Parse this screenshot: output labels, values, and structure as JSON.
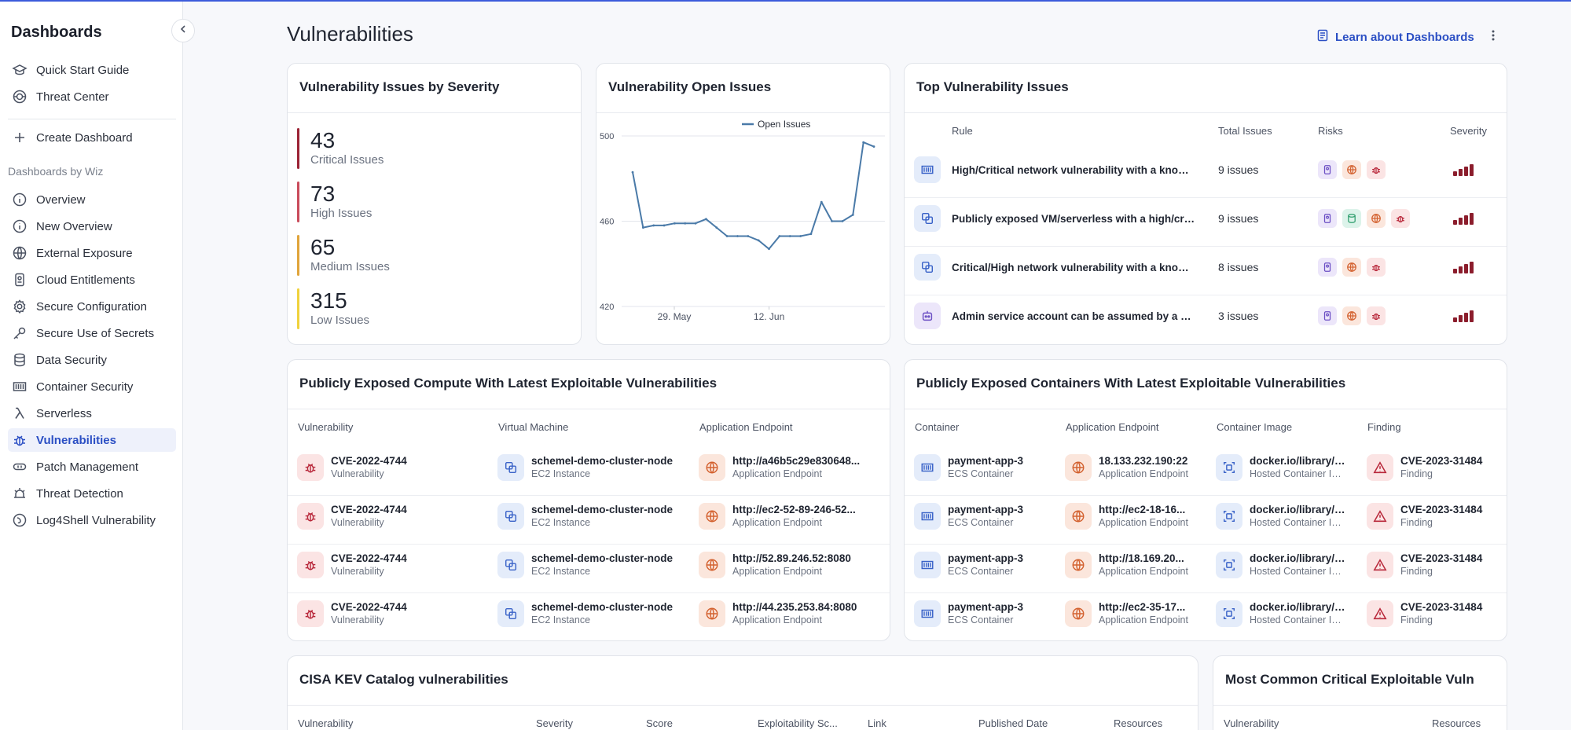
{
  "sidebar": {
    "title": "Dashboards",
    "top_items": [
      {
        "label": "Quick Start Guide",
        "icon": "graduation-cap-icon"
      },
      {
        "label": "Threat Center",
        "icon": "radar-icon"
      }
    ],
    "create_label": "Create Dashboard",
    "section_label": "Dashboards by Wiz",
    "items": [
      {
        "label": "Overview",
        "icon": "info-icon"
      },
      {
        "label": "New Overview",
        "icon": "info-icon"
      },
      {
        "label": "External Exposure",
        "icon": "globe-icon"
      },
      {
        "label": "Cloud Entitlements",
        "icon": "id-badge-icon"
      },
      {
        "label": "Secure Configuration",
        "icon": "gear-icon"
      },
      {
        "label": "Secure Use of Secrets",
        "icon": "key-icon"
      },
      {
        "label": "Data Security",
        "icon": "database-icon"
      },
      {
        "label": "Container Security",
        "icon": "container-icon"
      },
      {
        "label": "Serverless",
        "icon": "lambda-icon"
      },
      {
        "label": "Vulnerabilities",
        "icon": "bug-icon",
        "active": true
      },
      {
        "label": "Patch Management",
        "icon": "patch-icon"
      },
      {
        "label": "Threat Detection",
        "icon": "threat-icon"
      },
      {
        "label": "Log4Shell Vulnerability",
        "icon": "log4shell-icon"
      }
    ]
  },
  "header": {
    "title": "Vulnerabilities",
    "learn_label": "Learn about Dashboards"
  },
  "severity_card": {
    "title": "Vulnerability Issues by Severity",
    "rows": [
      {
        "count": "43",
        "label": "Critical Issues",
        "color": "#9b2335"
      },
      {
        "count": "73",
        "label": "High Issues",
        "color": "#c94b5b"
      },
      {
        "count": "65",
        "label": "Medium Issues",
        "color": "#e0a43a"
      },
      {
        "count": "315",
        "label": "Low Issues",
        "color": "#f0d23c"
      }
    ]
  },
  "open_issues_card": {
    "title": "Vulnerability Open Issues"
  },
  "chart_data": {
    "type": "line",
    "title": "Vulnerability Open Issues",
    "legend": [
      "Open Issues"
    ],
    "ylim": [
      420,
      500
    ],
    "yticks": [
      "500",
      "460",
      "420"
    ],
    "xticks": [
      "29. May",
      "12. Jun"
    ],
    "series": [
      {
        "name": "Open Issues",
        "color": "#4a7aa8",
        "values": [
          483,
          457,
          458,
          458,
          459,
          459,
          459,
          461,
          457,
          453,
          453,
          453,
          451,
          447,
          453,
          453,
          453,
          454,
          469,
          460,
          460,
          463,
          497,
          495
        ]
      }
    ]
  },
  "top_issues_card": {
    "title": "Top Vulnerability Issues",
    "columns": [
      "Rule",
      "Total Issues",
      "Risks",
      "Severity"
    ],
    "rows": [
      {
        "rule": "High/Critical network vulnerability with a known exploit",
        "icon": "container-icon",
        "count": "9 issues",
        "risks": [
          "id-badge-icon",
          "globe-icon",
          "bug-icon"
        ]
      },
      {
        "rule": "Publicly exposed VM/serverless with a high/critical vulnerability",
        "icon": "vm-icon",
        "count": "9 issues",
        "risks": [
          "id-badge-icon",
          "database-icon",
          "globe-icon",
          "bug-icon"
        ]
      },
      {
        "rule": "Critical/High network vulnerability with a known exploit",
        "icon": "vm-icon",
        "count": "8 issues",
        "risks": [
          "id-badge-icon",
          "globe-icon",
          "bug-icon"
        ]
      },
      {
        "rule": "Admin service account can be assumed by a vulnerable VM",
        "icon": "robot-icon",
        "count": "3 issues",
        "risks": [
          "id-badge-icon",
          "globe-icon",
          "bug-icon"
        ]
      }
    ]
  },
  "compute_card": {
    "title": "Publicly Exposed Compute With Latest Exploitable Vulnerabilities",
    "columns": [
      "Vulnerability",
      "Virtual Machine",
      "Application Endpoint"
    ],
    "rows": [
      {
        "vuln": "CVE-2022-4744",
        "vuln_sub": "Vulnerability",
        "vm": "schemel-demo-cluster-node",
        "vm_sub": "EC2 Instance",
        "endpoint": "http://a46b5c29e830648...",
        "endpoint_sub": "Application Endpoint"
      },
      {
        "vuln": "CVE-2022-4744",
        "vuln_sub": "Vulnerability",
        "vm": "schemel-demo-cluster-node",
        "vm_sub": "EC2 Instance",
        "endpoint": "http://ec2-52-89-246-52...",
        "endpoint_sub": "Application Endpoint"
      },
      {
        "vuln": "CVE-2022-4744",
        "vuln_sub": "Vulnerability",
        "vm": "schemel-demo-cluster-node",
        "vm_sub": "EC2 Instance",
        "endpoint": "http://52.89.246.52:8080",
        "endpoint_sub": "Application Endpoint"
      },
      {
        "vuln": "CVE-2022-4744",
        "vuln_sub": "Vulnerability",
        "vm": "schemel-demo-cluster-node",
        "vm_sub": "EC2 Instance",
        "endpoint": "http://44.235.253.84:8080",
        "endpoint_sub": "Application Endpoint"
      }
    ]
  },
  "containers_card": {
    "title": "Publicly Exposed Containers With Latest Exploitable Vulnerabilities",
    "columns": [
      "Container",
      "Application Endpoint",
      "Container Image",
      "Finding"
    ],
    "rows": [
      {
        "container": "payment-app-3",
        "container_sub": "ECS Container",
        "endpoint": "18.133.232.190:22",
        "endpoint_sub": "Application Endpoint",
        "image": "docker.io/library/nginx",
        "image_sub": "Hosted Container Image",
        "finding": "CVE-2023-31484",
        "finding_sub": "Finding"
      },
      {
        "container": "payment-app-3",
        "container_sub": "ECS Container",
        "endpoint": "http://ec2-18-16...",
        "endpoint_sub": "Application Endpoint",
        "image": "docker.io/library/nginx",
        "image_sub": "Hosted Container Image",
        "finding": "CVE-2023-31484",
        "finding_sub": "Finding"
      },
      {
        "container": "payment-app-3",
        "container_sub": "ECS Container",
        "endpoint": "http://18.169.20...",
        "endpoint_sub": "Application Endpoint",
        "image": "docker.io/library/nginx",
        "image_sub": "Hosted Container Image",
        "finding": "CVE-2023-31484",
        "finding_sub": "Finding"
      },
      {
        "container": "payment-app-3",
        "container_sub": "ECS Container",
        "endpoint": "http://ec2-35-17...",
        "endpoint_sub": "Application Endpoint",
        "image": "docker.io/library/nginx",
        "image_sub": "Hosted Container Image",
        "finding": "CVE-2023-31484",
        "finding_sub": "Finding"
      }
    ]
  },
  "cisa_card": {
    "title": "CISA KEV Catalog vulnerabilities",
    "columns": [
      "Vulnerability",
      "Severity",
      "Score",
      "Exploitability Sc...",
      "Link",
      "Published Date",
      "Resources"
    ]
  },
  "common_card": {
    "title": "Most Common Critical Exploitable Vuln",
    "columns": [
      "Vulnerability",
      "Resources"
    ]
  }
}
